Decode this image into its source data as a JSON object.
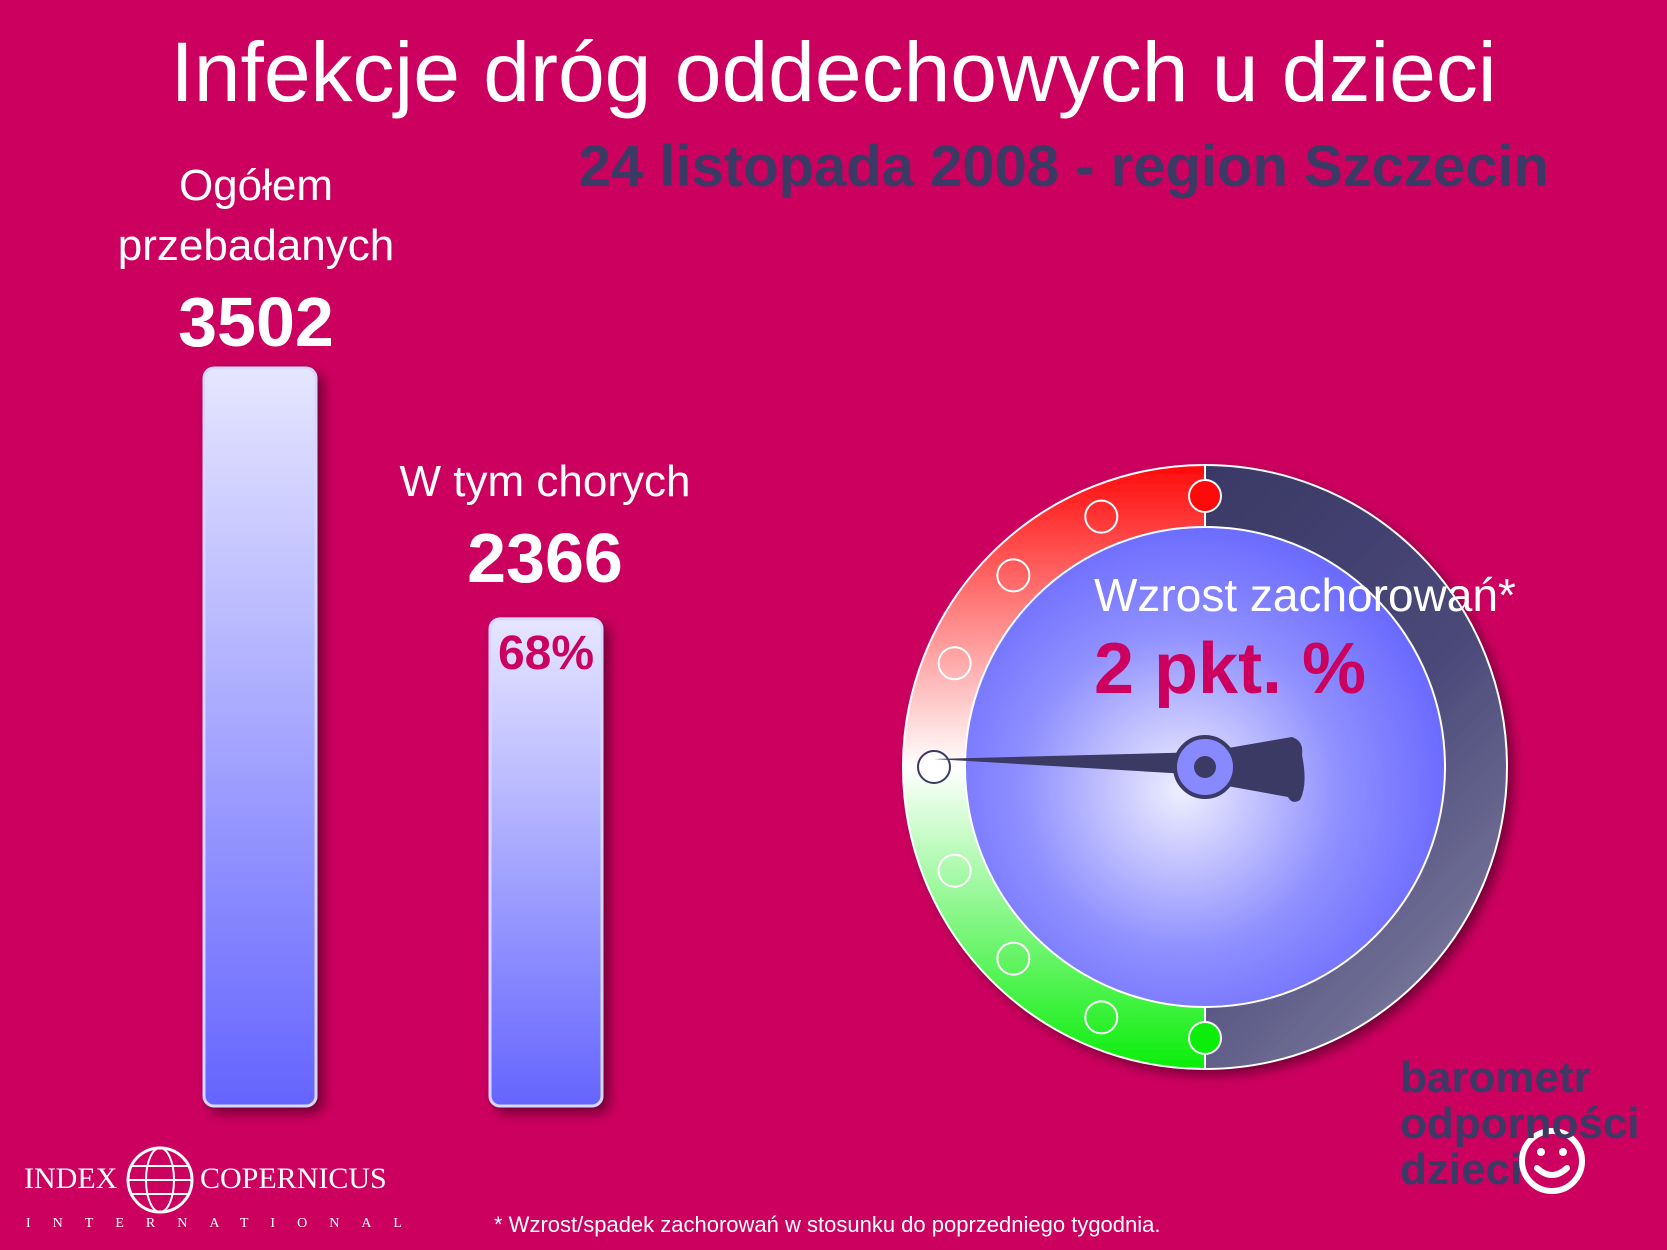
{
  "header": {
    "title": "Infekcje dróg oddechowych u dzieci",
    "subtitle": "24 listopada 2008 - region Szczecin"
  },
  "chart_data": {
    "type": "bar",
    "categories": [
      "Ogółem przebadanych",
      "W tym chorych"
    ],
    "values": [
      3502,
      2366
    ],
    "ylim": [
      0,
      3502
    ],
    "bars": [
      {
        "label_line1": "Ogółem",
        "label_line2": "przebadanych",
        "value_text": "3502"
      },
      {
        "label_line1": "W tym chorych",
        "value_text": "2366",
        "percent_text": "68%"
      }
    ]
  },
  "gauge": {
    "label": "Wzrost zachorowań*",
    "value_text": "2 pkt. %",
    "value": 2,
    "colors": {
      "red": "#ff1010",
      "green": "#10ee10",
      "dial": "#7c7cff",
      "dark": "#3b3a64"
    }
  },
  "brand": {
    "line1": "barometr",
    "line2": "odporności",
    "line3": "dzieci"
  },
  "logo": {
    "left": "INDEX",
    "right": "COPERNICUS",
    "sub": "INTERNATIONAL"
  },
  "footnote": "* Wzrost/spadek zachorowań w stosunku do poprzedniego tygodnia.",
  "colors": {
    "background": "#cc005f",
    "bar_top": "#e4e4ff",
    "bar_bottom": "#6a6aff"
  }
}
